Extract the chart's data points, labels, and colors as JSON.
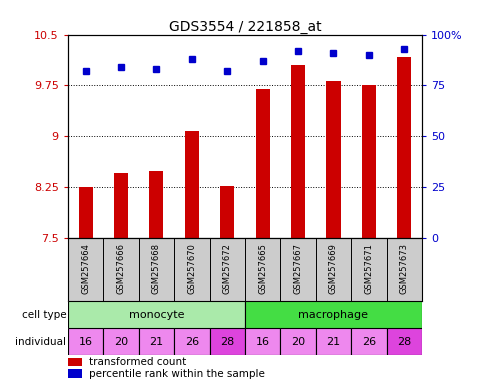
{
  "title": "GDS3554 / 221858_at",
  "samples": [
    "GSM257664",
    "GSM257666",
    "GSM257668",
    "GSM257670",
    "GSM257672",
    "GSM257665",
    "GSM257667",
    "GSM257669",
    "GSM257671",
    "GSM257673"
  ],
  "transformed_count": [
    8.25,
    8.45,
    8.48,
    9.07,
    8.26,
    9.69,
    10.05,
    9.82,
    9.76,
    10.17
  ],
  "percentile_rank": [
    82,
    84,
    83,
    88,
    82,
    87,
    92,
    91,
    90,
    93
  ],
  "ylim_left": [
    7.5,
    10.5
  ],
  "ylim_right": [
    0,
    100
  ],
  "yticks_left": [
    7.5,
    8.25,
    9.0,
    9.75,
    10.5
  ],
  "ytick_labels_left": [
    "7.5",
    "8.25",
    "9",
    "9.75",
    "10.5"
  ],
  "yticks_right": [
    0,
    25,
    50,
    75,
    100
  ],
  "ytick_labels_right": [
    "0",
    "25",
    "50",
    "75",
    "100%"
  ],
  "individuals": [
    "16",
    "20",
    "21",
    "26",
    "28",
    "16",
    "20",
    "21",
    "26",
    "28"
  ],
  "bar_color": "#cc0000",
  "dot_color": "#0000cc",
  "monocyte_color": "#aaeaaa",
  "macrophage_color": "#44dd44",
  "individual_colors_light": "#ee88ee",
  "individual_color_dark": "#dd44dd",
  "individual_dark_indices": [
    4,
    9
  ],
  "axis_label_color_left": "#cc0000",
  "axis_label_color_right": "#0000cc",
  "background_color": "#ffffff",
  "sample_bg_color": "#cccccc",
  "bar_width": 0.4
}
